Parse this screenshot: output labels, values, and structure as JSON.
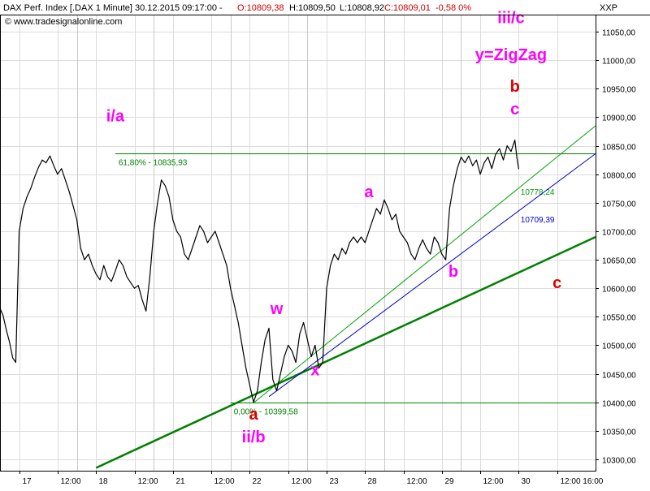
{
  "header": {
    "instrument": "DAX Perf. Index [.DAX  1 Minute] 30.12.2015 09:17:00 -",
    "open": "O:10809,38",
    "high": "H:10809,50",
    "low": "L:10808,92",
    "close": "C:10809,01",
    "change": "-0,58 0%",
    "copyright": "© www.tradesignalonline.com",
    "axis_symbol": "XXP"
  },
  "colors": {
    "price": "#000000",
    "grid": "#dcdcdc",
    "fib_line": "#008000",
    "trend_thick": "#008000",
    "trend_thin_green": "#00a000",
    "trend_blue": "#0000cc",
    "magenta": "#ff00ff",
    "red": "#dd0000",
    "header_red": "#cc0000"
  },
  "chart_data": {
    "type": "line",
    "title": "DAX Perf. Index [.DAX  1 Minute]",
    "y_axis": {
      "side": "right",
      "ylim": [
        10280,
        11080
      ],
      "ticks": [
        10300,
        10350,
        10400,
        10450,
        10500,
        10550,
        10600,
        10650,
        10700,
        10750,
        10800,
        10850,
        10900,
        10950,
        11000,
        11050
      ],
      "tick_labels": [
        "10300,00",
        "10350,00",
        "10400,00",
        "10450,00",
        "10500,00",
        "10550,00",
        "10600,00",
        "10650,00",
        "10700,00",
        "10750,00",
        "10800,00",
        "10850,00",
        "10900,00",
        "10950,00",
        "11000,00",
        "11050,00"
      ]
    },
    "x_axis": {
      "xlim": [
        0,
        15.5
      ],
      "ticks": [
        0.5,
        1.5,
        2.5,
        3.5,
        4.5,
        5.5,
        6.5,
        7.5,
        8.5,
        9.5,
        10.5,
        11.5,
        12.5,
        13.5,
        14.5
      ],
      "tick_labels": [
        "17",
        "12:00",
        "18",
        "12:00",
        "21",
        "12:00",
        "22",
        "12:00",
        "23",
        "28",
        "12:00",
        "29",
        "12:00",
        "30",
        "12:00 16:00"
      ],
      "date_separators": [
        2,
        4,
        6,
        8,
        10,
        12
      ]
    },
    "grid": true,
    "series": [
      {
        "values": [
          [
            0.0,
            10565
          ],
          [
            0.08,
            10552
          ],
          [
            0.16,
            10528
          ],
          [
            0.25,
            10505
          ],
          [
            0.33,
            10478
          ],
          [
            0.41,
            10470
          ],
          [
            0.5,
            10700
          ],
          [
            0.6,
            10740
          ],
          [
            0.7,
            10760
          ],
          [
            0.8,
            10775
          ],
          [
            0.9,
            10795
          ],
          [
            1.0,
            10812
          ],
          [
            1.1,
            10825
          ],
          [
            1.2,
            10820
          ],
          [
            1.3,
            10832
          ],
          [
            1.4,
            10815
          ],
          [
            1.5,
            10800
          ],
          [
            1.6,
            10810
          ],
          [
            1.7,
            10790
          ],
          [
            1.8,
            10770
          ],
          [
            1.9,
            10745
          ],
          [
            2.0,
            10720
          ],
          [
            2.1,
            10670
          ],
          [
            2.2,
            10650
          ],
          [
            2.3,
            10660
          ],
          [
            2.4,
            10640
          ],
          [
            2.5,
            10625
          ],
          [
            2.6,
            10615
          ],
          [
            2.7,
            10640
          ],
          [
            2.8,
            10620
          ],
          [
            2.9,
            10612
          ],
          [
            3.0,
            10630
          ],
          [
            3.1,
            10650
          ],
          [
            3.2,
            10640
          ],
          [
            3.3,
            10620
          ],
          [
            3.4,
            10610
          ],
          [
            3.5,
            10600
          ],
          [
            3.6,
            10605
          ],
          [
            3.7,
            10580
          ],
          [
            3.8,
            10560
          ],
          [
            3.9,
            10620
          ],
          [
            4.0,
            10700
          ],
          [
            4.1,
            10750
          ],
          [
            4.2,
            10790
          ],
          [
            4.3,
            10780
          ],
          [
            4.4,
            10760
          ],
          [
            4.5,
            10720
          ],
          [
            4.6,
            10700
          ],
          [
            4.7,
            10690
          ],
          [
            4.8,
            10660
          ],
          [
            4.9,
            10650
          ],
          [
            5.0,
            10670
          ],
          [
            5.1,
            10690
          ],
          [
            5.2,
            10710
          ],
          [
            5.3,
            10700
          ],
          [
            5.4,
            10680
          ],
          [
            5.5,
            10690
          ],
          [
            5.6,
            10700
          ],
          [
            5.7,
            10680
          ],
          [
            5.8,
            10660
          ],
          [
            5.9,
            10640
          ],
          [
            6.0,
            10600
          ],
          [
            6.1,
            10570
          ],
          [
            6.2,
            10540
          ],
          [
            6.3,
            10500
          ],
          [
            6.4,
            10460
          ],
          [
            6.5,
            10430
          ],
          [
            6.6,
            10400
          ],
          [
            6.7,
            10420
          ],
          [
            6.8,
            10470
          ],
          [
            6.9,
            10510
          ],
          [
            7.0,
            10530
          ],
          [
            7.1,
            10440
          ],
          [
            7.2,
            10420
          ],
          [
            7.3,
            10450
          ],
          [
            7.4,
            10480
          ],
          [
            7.5,
            10500
          ],
          [
            7.6,
            10490
          ],
          [
            7.7,
            10470
          ],
          [
            7.8,
            10520
          ],
          [
            7.9,
            10540
          ],
          [
            8.0,
            10510
          ],
          [
            8.1,
            10480
          ],
          [
            8.2,
            10500
          ],
          [
            8.3,
            10460
          ],
          [
            8.4,
            10470
          ],
          [
            8.5,
            10600
          ],
          [
            8.6,
            10640
          ],
          [
            8.7,
            10660
          ],
          [
            8.8,
            10650
          ],
          [
            8.9,
            10670
          ],
          [
            9.0,
            10660
          ],
          [
            9.1,
            10680
          ],
          [
            9.2,
            10690
          ],
          [
            9.3,
            10680
          ],
          [
            9.4,
            10690
          ],
          [
            9.5,
            10680
          ],
          [
            9.6,
            10700
          ],
          [
            9.7,
            10720
          ],
          [
            9.8,
            10740
          ],
          [
            9.9,
            10730
          ],
          [
            10.0,
            10755
          ],
          [
            10.1,
            10740
          ],
          [
            10.2,
            10720
          ],
          [
            10.3,
            10730
          ],
          [
            10.4,
            10700
          ],
          [
            10.5,
            10690
          ],
          [
            10.6,
            10680
          ],
          [
            10.7,
            10660
          ],
          [
            10.8,
            10650
          ],
          [
            10.9,
            10670
          ],
          [
            11.0,
            10685
          ],
          [
            11.1,
            10670
          ],
          [
            11.2,
            10660
          ],
          [
            11.3,
            10690
          ],
          [
            11.4,
            10680
          ],
          [
            11.5,
            10660
          ],
          [
            11.6,
            10650
          ],
          [
            11.7,
            10740
          ],
          [
            11.8,
            10780
          ],
          [
            11.9,
            10810
          ],
          [
            12.0,
            10830
          ],
          [
            12.1,
            10820
          ],
          [
            12.2,
            10832
          ],
          [
            12.3,
            10815
          ],
          [
            12.4,
            10825
          ],
          [
            12.5,
            10800
          ],
          [
            12.6,
            10820
          ],
          [
            12.7,
            10830
          ],
          [
            12.8,
            10810
          ],
          [
            12.9,
            10835
          ],
          [
            13.0,
            10845
          ],
          [
            13.1,
            10825
          ],
          [
            13.2,
            10850
          ],
          [
            13.3,
            10840
          ],
          [
            13.4,
            10860
          ],
          [
            13.45,
            10830
          ],
          [
            13.5,
            10809
          ]
        ]
      }
    ],
    "lines": [
      {
        "kind": "horizontal",
        "y": 10835.93,
        "label": "61,80% - 10835,93"
      },
      {
        "kind": "horizontal",
        "y": 10399.58,
        "label": "0,00% - 10399,58"
      },
      {
        "kind": "trend",
        "style": "thick-green",
        "from": [
          2.5,
          10285
        ],
        "to": [
          15.5,
          10690
        ]
      },
      {
        "kind": "trend",
        "style": "thin-green",
        "from": [
          6.6,
          10399
        ],
        "to": [
          15.5,
          10885
        ],
        "label": "10778,24"
      },
      {
        "kind": "trend",
        "style": "blue",
        "from": [
          7.0,
          10410
        ],
        "to": [
          15.5,
          10836
        ],
        "label": "10709,39"
      }
    ],
    "annotations": [
      {
        "text": "i/a",
        "color": "magenta",
        "x": 3.0,
        "y": 10893
      },
      {
        "text": "iii/c",
        "color": "magenta",
        "x": 13.3,
        "y": 11065
      },
      {
        "text": "y=ZigZag",
        "color": "magenta",
        "x": 13.3,
        "y": 11000
      },
      {
        "text": "b",
        "color": "red",
        "x": 13.4,
        "y": 10945
      },
      {
        "text": "c",
        "color": "magenta",
        "x": 13.4,
        "y": 10905
      },
      {
        "text": "a",
        "color": "magenta",
        "x": 9.6,
        "y": 10760
      },
      {
        "text": "b",
        "color": "magenta",
        "x": 11.8,
        "y": 10620
      },
      {
        "text": "c",
        "color": "red",
        "x": 14.5,
        "y": 10600
      },
      {
        "text": "w",
        "color": "magenta",
        "x": 7.2,
        "y": 10555
      },
      {
        "text": "x",
        "color": "magenta",
        "x": 8.2,
        "y": 10447
      },
      {
        "text": "a",
        "color": "red",
        "x": 6.6,
        "y": 10370
      },
      {
        "text": "ii/b",
        "color": "magenta",
        "x": 6.6,
        "y": 10330
      }
    ]
  }
}
